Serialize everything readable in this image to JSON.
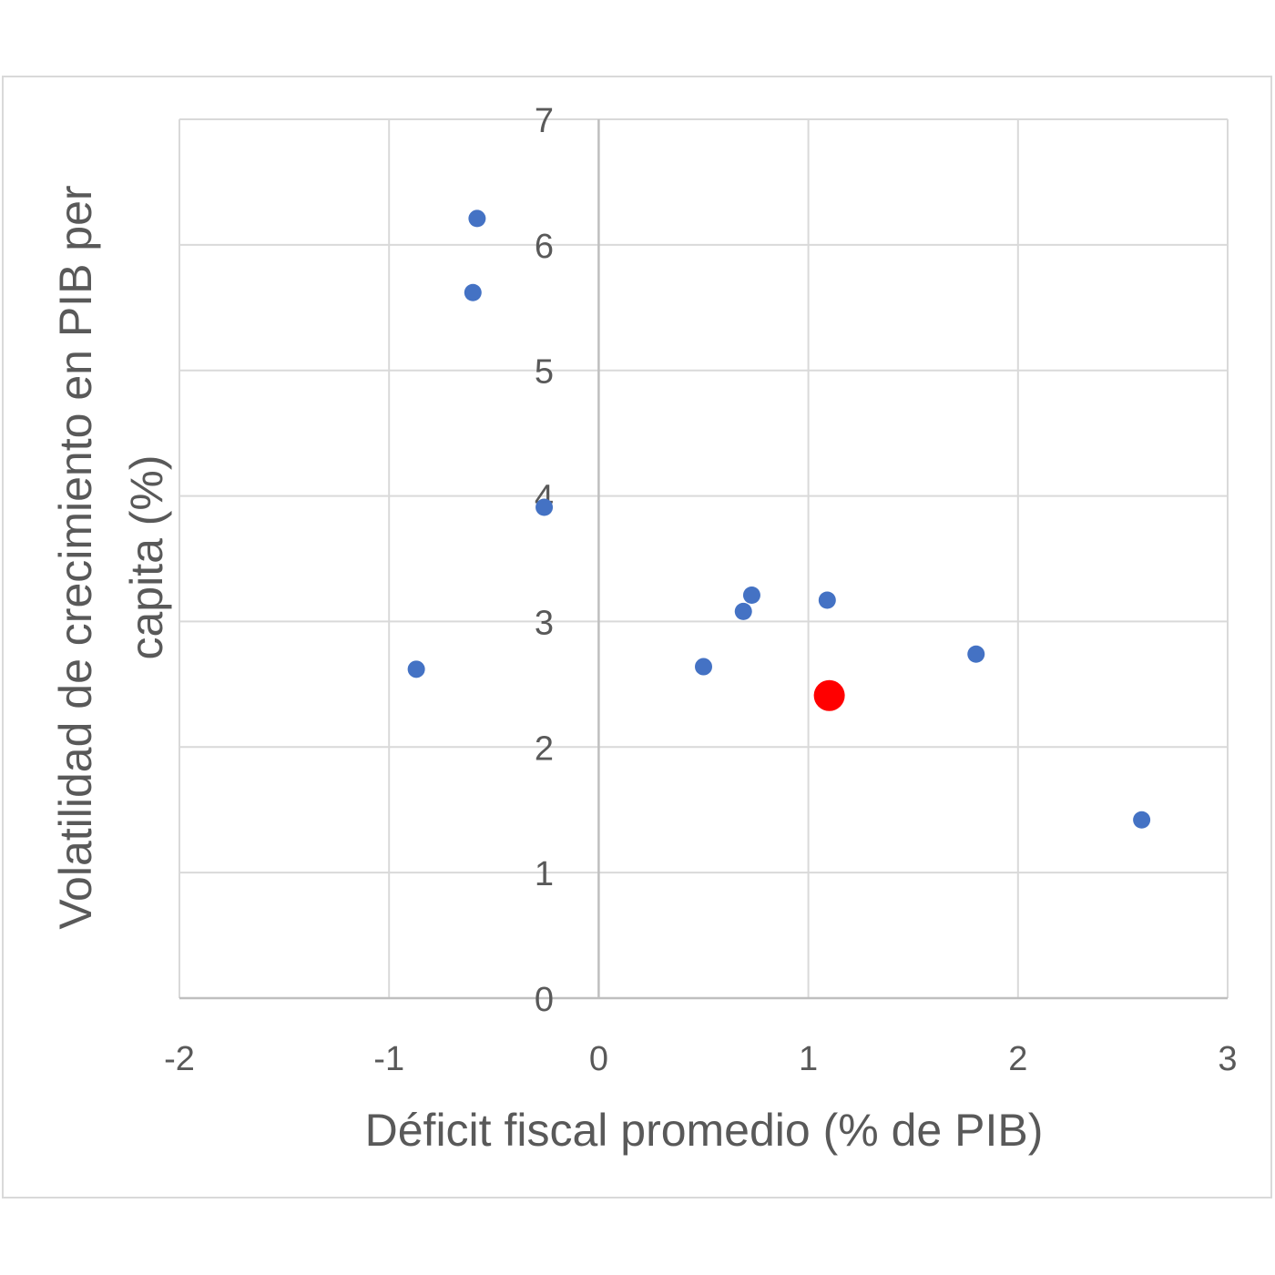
{
  "chart_data": {
    "type": "scatter",
    "title": "",
    "xlabel": "Déficit fiscal promedio (% de PIB)",
    "ylabel_lines": [
      "Volatilidad de crecimiento en PIB per",
      "capita (%)"
    ],
    "xlim": [
      -2,
      3
    ],
    "ylim": [
      0,
      7
    ],
    "x_ticks": [
      -2,
      -1,
      0,
      1,
      2,
      3
    ],
    "y_ticks": [
      0,
      1,
      2,
      3,
      4,
      5,
      6,
      7
    ],
    "grid": true,
    "legend": "none",
    "series": [
      {
        "color": "#4472c4",
        "points": [
          {
            "x": -0.58,
            "y": 6.21
          },
          {
            "x": -0.6,
            "y": 5.62
          },
          {
            "x": -0.26,
            "y": 3.91
          },
          {
            "x": -0.87,
            "y": 2.62
          },
          {
            "x": 0.5,
            "y": 2.64
          },
          {
            "x": 0.69,
            "y": 3.08
          },
          {
            "x": 0.73,
            "y": 3.21
          },
          {
            "x": 1.09,
            "y": 3.17
          },
          {
            "x": 1.8,
            "y": 2.74
          },
          {
            "x": 2.59,
            "y": 1.42
          }
        ]
      },
      {
        "color": "#ff0000",
        "highlight": true,
        "points": [
          {
            "x": 1.1,
            "y": 2.41
          }
        ]
      }
    ],
    "colors": {
      "grid": "#d9d9d9",
      "axis": "#bfbfbf",
      "text": "#595959",
      "frame": "#d9d9d9"
    }
  }
}
